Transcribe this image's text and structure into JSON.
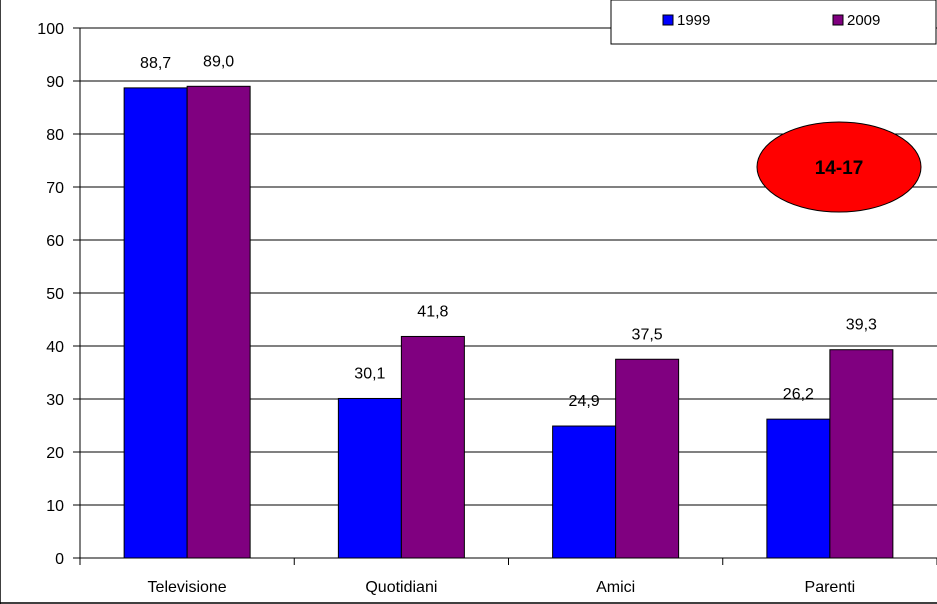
{
  "chart_data": {
    "type": "bar",
    "categories": [
      "Televisione",
      "Quotidiani",
      "Amici",
      "Parenti"
    ],
    "series": [
      {
        "name": "1999",
        "values": [
          88.7,
          30.1,
          24.9,
          26.2
        ],
        "labels": [
          "88,7",
          "30,1",
          "24,9",
          "26,2"
        ],
        "color": "#0000ff"
      },
      {
        "name": "2009",
        "values": [
          89.0,
          41.8,
          37.5,
          39.3
        ],
        "labels": [
          "89,0",
          "41,8",
          "37,5",
          "39,3"
        ],
        "color": "#800080"
      }
    ],
    "ylim": [
      0,
      100
    ],
    "yticks": [
      0,
      10,
      20,
      30,
      40,
      50,
      60,
      70,
      80,
      90,
      100
    ],
    "grid": true,
    "legend": "top-right",
    "annotation": {
      "text": "14-17",
      "color": "#ff0000"
    }
  }
}
